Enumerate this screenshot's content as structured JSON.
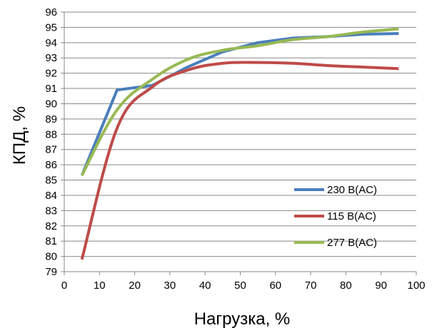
{
  "chart_data": {
    "type": "line",
    "title": "",
    "xlabel": "Нагрузка, %",
    "ylabel": "КПД, %",
    "xlim": [
      0,
      100
    ],
    "ylim": [
      79,
      96
    ],
    "xticks": [
      "0",
      "10",
      "20",
      "30",
      "40",
      "50",
      "60",
      "70",
      "80",
      "90",
      "100"
    ],
    "yticks": [
      "79",
      "80",
      "81",
      "82",
      "83",
      "84",
      "85",
      "86",
      "87",
      "88",
      "89",
      "90",
      "91",
      "92",
      "93",
      "94",
      "95",
      "96"
    ],
    "grid": "horizontal",
    "legend_position": "right",
    "series": [
      {
        "name": "230 В(AC)",
        "color": "#4a7ebb",
        "x": [
          5,
          15,
          25,
          35,
          45,
          55,
          65,
          75,
          85,
          95
        ],
        "y": [
          85.3,
          90.9,
          91.2,
          92.4,
          93.4,
          94.0,
          94.3,
          94.4,
          94.55,
          94.6
        ]
      },
      {
        "name": "115 В(AC)",
        "color": "#be4b48",
        "x": [
          5,
          15,
          25,
          35,
          45,
          55,
          65,
          75,
          85,
          95
        ],
        "y": [
          79.8,
          88.4,
          91.1,
          92.2,
          92.65,
          92.7,
          92.65,
          92.5,
          92.4,
          92.3
        ]
      },
      {
        "name": "277 В(AC)",
        "color": "#98b954",
        "x": [
          5,
          15,
          25,
          35,
          45,
          55,
          65,
          75,
          85,
          95
        ],
        "y": [
          85.3,
          89.6,
          91.6,
          92.9,
          93.5,
          93.8,
          94.2,
          94.4,
          94.7,
          94.9
        ]
      }
    ]
  }
}
